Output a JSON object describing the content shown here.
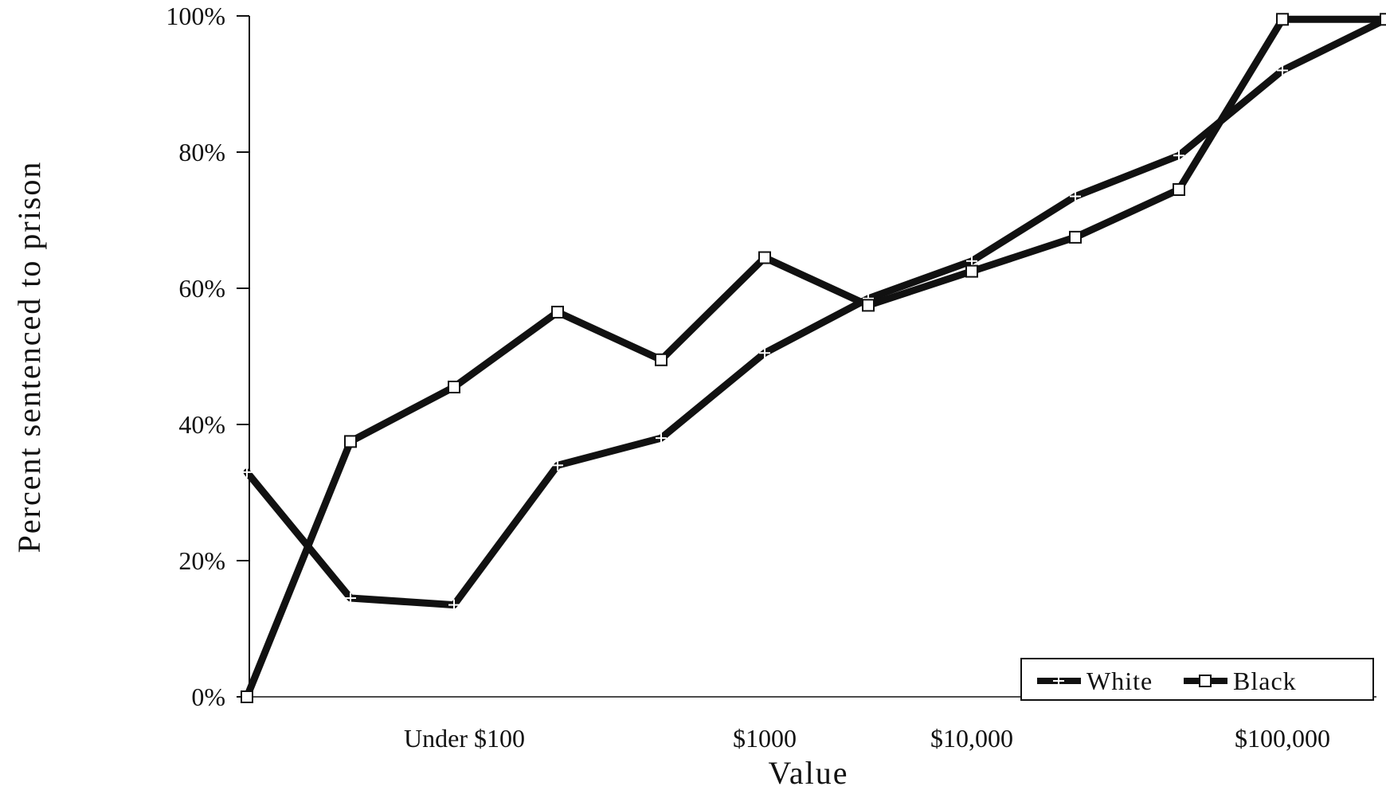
{
  "chart_data": {
    "type": "line",
    "xlabel": "Value",
    "ylabel": "Percent sentenced to prison",
    "ylim": [
      0,
      100
    ],
    "yticks": [
      "0%",
      "20%",
      "40%",
      "60%",
      "80%",
      "100%"
    ],
    "x_points": 12,
    "xtick_labels": [
      {
        "label": "Under $100",
        "at": 2.1
      },
      {
        "label": "$1000",
        "at": 5
      },
      {
        "label": "$10,000",
        "at": 7
      },
      {
        "label": "$100,000",
        "at": 10
      }
    ],
    "grid": false,
    "legend": "bottom-right",
    "series": [
      {
        "name": "White",
        "marker": "plus",
        "values": [
          33,
          14.5,
          13.5,
          34,
          38,
          50.5,
          58.5,
          64,
          73.5,
          79.5,
          92,
          99.5
        ]
      },
      {
        "name": "Black",
        "marker": "square",
        "values": [
          0,
          37.5,
          45.5,
          56.5,
          49.5,
          64.5,
          57.5,
          62.5,
          67.5,
          74.5,
          99.5,
          99.5
        ]
      }
    ]
  }
}
